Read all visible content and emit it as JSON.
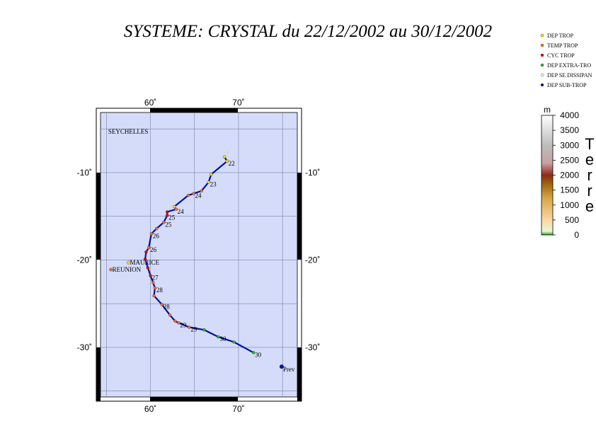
{
  "title": "SYSTEME: CRYSTAL du 22/12/2002 au 30/12/2002",
  "legend": [
    {
      "label": "DEP TROP",
      "color": "#ffe000"
    },
    {
      "label": "TEMP TROP",
      "color": "#ff6a2a"
    },
    {
      "label": "CYC TROP",
      "color": "#e00000"
    },
    {
      "label": "DEP EXTRA-TRO",
      "color": "#22bb22"
    },
    {
      "label": "DEP SE DISSIPAN",
      "color": "#ffffff"
    },
    {
      "label": "DEP SUB-TROP",
      "color": "#001a99"
    }
  ],
  "map": {
    "lonlim": [
      54,
      77
    ],
    "latlim": [
      -2.8,
      -36
    ],
    "lonticks": [
      {
        "value": 60,
        "label": "60˚"
      },
      {
        "value": 70,
        "label": "70˚"
      }
    ],
    "latticks": [
      {
        "value": -10,
        "label": "-10˚"
      },
      {
        "value": -20,
        "label": "-20˚"
      },
      {
        "value": -30,
        "label": "-30˚"
      }
    ],
    "longrid": [
      55,
      60,
      65,
      70,
      75
    ],
    "latgrid": [
      -5,
      -10,
      -15,
      -20,
      -25,
      -30,
      -35
    ],
    "places": [
      {
        "label": "SEYCHELLES",
        "lon": 55.2,
        "lat": -5.3,
        "marker": false
      },
      {
        "label": "MAURICE",
        "lon": 57.5,
        "lat": -20.3,
        "marker": true,
        "color": "#ffe000"
      },
      {
        "label": "REUNION",
        "lon": 55.5,
        "lat": -21.1,
        "marker": true,
        "color": "#ff6a2a"
      }
    ],
    "track": [
      {
        "lon": 68.4,
        "lat": -8.2,
        "type": 0
      },
      {
        "lon": 68.7,
        "lat": -8.7,
        "type": 0,
        "label": "22"
      },
      {
        "lon": 66.9,
        "lat": -10.2,
        "type": 0
      },
      {
        "lon": 66.6,
        "lat": -11.1,
        "type": 0,
        "label": "23"
      },
      {
        "lon": 65.8,
        "lat": -12.1,
        "type": 1
      },
      {
        "lon": 64.9,
        "lat": -12.4,
        "type": 1,
        "label": "24"
      },
      {
        "lon": 64.3,
        "lat": -12.6,
        "type": 1
      },
      {
        "lon": 62.7,
        "lat": -13.9,
        "type": 0
      },
      {
        "lon": 62.9,
        "lat": -14.2,
        "type": 1,
        "label": "24"
      },
      {
        "lon": 61.9,
        "lat": -14.5,
        "type": 2
      },
      {
        "lon": 61.9,
        "lat": -14.9,
        "type": 2,
        "label": "25"
      },
      {
        "lon": 61.5,
        "lat": -15.7,
        "type": 1,
        "label": "25"
      },
      {
        "lon": 60.7,
        "lat": -16.4,
        "type": 1
      },
      {
        "lon": 60.1,
        "lat": -17.0,
        "type": 1,
        "label": "26"
      },
      {
        "lon": 59.8,
        "lat": -18.6,
        "type": 1,
        "label": "26"
      },
      {
        "lon": 59.5,
        "lat": -19.1,
        "type": 2
      },
      {
        "lon": 59.4,
        "lat": -19.9,
        "type": 2
      },
      {
        "lon": 59.7,
        "lat": -20.9,
        "type": 2
      },
      {
        "lon": 60.0,
        "lat": -21.8,
        "type": 2,
        "label": "27"
      },
      {
        "lon": 60.3,
        "lat": -22.6,
        "type": 1
      },
      {
        "lon": 60.5,
        "lat": -23.2,
        "type": 1,
        "label": "28"
      },
      {
        "lon": 60.4,
        "lat": -24.1,
        "type": 1
      },
      {
        "lon": 61.3,
        "lat": -25.1,
        "type": 1,
        "label": "28"
      },
      {
        "lon": 62.2,
        "lat": -26.3,
        "type": 1
      },
      {
        "lon": 62.8,
        "lat": -27.0,
        "type": 1
      },
      {
        "lon": 63.2,
        "lat": -27.2,
        "type": 1,
        "label": "29"
      },
      {
        "lon": 64.4,
        "lat": -27.7,
        "type": 1,
        "label": "29"
      },
      {
        "lon": 66.1,
        "lat": -28.0,
        "type": 3
      },
      {
        "lon": 67.7,
        "lat": -28.8,
        "type": 3,
        "label": "30"
      },
      {
        "lon": 69.5,
        "lat": -29.4,
        "type": 3
      },
      {
        "lon": 71.7,
        "lat": -30.6,
        "type": 3,
        "label": "30"
      }
    ],
    "forecast": {
      "label": "Prev",
      "lon": 74.9,
      "lat": -32.2,
      "type": 5
    }
  },
  "colorbar": {
    "unit": "m",
    "label": "Terre",
    "lim": [
      0,
      4000
    ],
    "ticks": [
      0,
      500,
      1000,
      1500,
      2000,
      2500,
      3000,
      3500,
      4000
    ]
  }
}
